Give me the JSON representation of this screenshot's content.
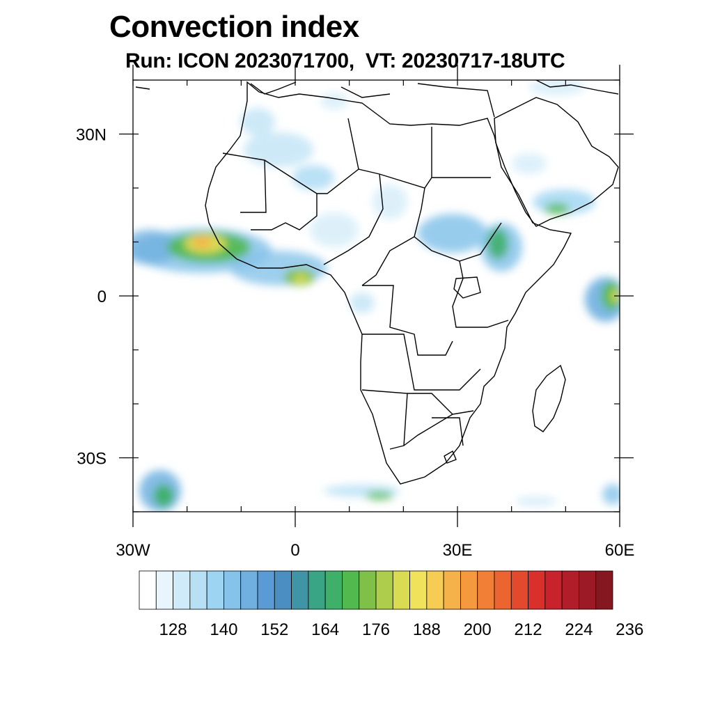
{
  "title": "Convection index",
  "subtitle": "Run: ICON 2023071700,  VT: 20230717-18UTC",
  "map": {
    "region": "Africa",
    "projection": "cylindrical equidistant",
    "lon_range": [
      -30,
      60
    ],
    "lat_range": [
      -40,
      40
    ],
    "lon_ticks": [
      {
        "value": -30,
        "label": "30W"
      },
      {
        "value": 0,
        "label": "0"
      },
      {
        "value": 30,
        "label": "30E"
      },
      {
        "value": 60,
        "label": "60E"
      }
    ],
    "lat_ticks": [
      {
        "value": 30,
        "label": "30N"
      },
      {
        "value": 0,
        "label": "0"
      },
      {
        "value": -30,
        "label": "30S"
      }
    ]
  },
  "colorbar": {
    "labels": [
      "128",
      "140",
      "152",
      "164",
      "176",
      "188",
      "200",
      "212",
      "224",
      "236"
    ],
    "colors": [
      "#ffffff",
      "#e8f5fc",
      "#cfeaf8",
      "#b8e0f5",
      "#9dd4f2",
      "#86c3ea",
      "#70b0e0",
      "#5b9bd5",
      "#4a8ec2",
      "#3f95a5",
      "#3aa585",
      "#3fb06a",
      "#52b94e",
      "#7fc048",
      "#aecd4c",
      "#d9dc53",
      "#f0e25a",
      "#f7cc55",
      "#f6b24a",
      "#f5993f",
      "#f27f36",
      "#ec6530",
      "#e3492d",
      "#d9302b",
      "#c8222c",
      "#b21d2a",
      "#9c1a25",
      "#851720"
    ]
  }
}
